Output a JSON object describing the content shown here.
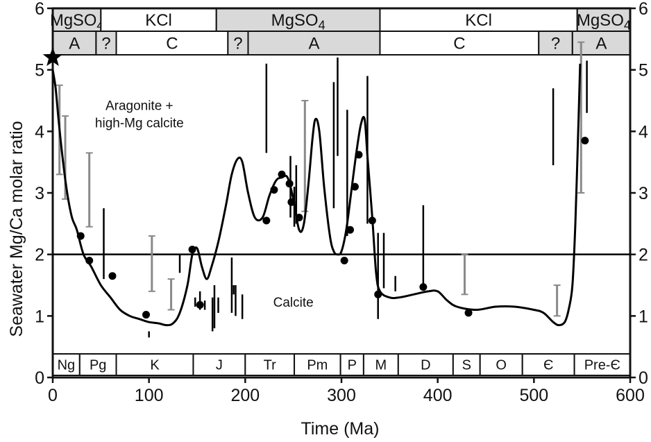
{
  "chart_data": {
    "type": "line",
    "title": "",
    "xlabel": "Time (Ma)",
    "ylabel": "Seawater Mg/Ca molar ratio",
    "xlim": [
      0,
      600
    ],
    "ylim": [
      0,
      6
    ],
    "x_ticks": [
      "0",
      "100",
      "200",
      "300",
      "400",
      "500",
      "600"
    ],
    "y_ticks": [
      "0",
      "1",
      "2",
      "3",
      "4",
      "5",
      "6"
    ],
    "grid": false,
    "threshold": {
      "y": 2,
      "label_above": "Aragonite + high-Mg calcite",
      "label_below": "Calcite"
    },
    "sea_type_bands": [
      {
        "label": "MgSO4",
        "from": 0,
        "to": 50,
        "shaded": true
      },
      {
        "label": "KCl",
        "from": 50,
        "to": 170,
        "shaded": false
      },
      {
        "label": "MgSO4",
        "from": 170,
        "to": 340,
        "shaded": true
      },
      {
        "label": "KCl",
        "from": 340,
        "to": 545,
        "shaded": false
      },
      {
        "label": "MgSO4",
        "from": 545,
        "to": 600,
        "shaded": true
      }
    ],
    "mineralogy_bands": [
      {
        "label": "A",
        "from": 0,
        "to": 45,
        "shaded": true
      },
      {
        "label": "?",
        "from": 45,
        "to": 66,
        "shaded": true
      },
      {
        "label": "C",
        "from": 66,
        "to": 182,
        "shaded": false
      },
      {
        "label": "?",
        "from": 182,
        "to": 203,
        "shaded": true
      },
      {
        "label": "A",
        "from": 203,
        "to": 340,
        "shaded": true
      },
      {
        "label": "C",
        "from": 340,
        "to": 505,
        "shaded": false
      },
      {
        "label": "?",
        "from": 505,
        "to": 540,
        "shaded": true
      },
      {
        "label": "A",
        "from": 540,
        "to": 600,
        "shaded": true
      }
    ],
    "periods": [
      {
        "label": "Ng",
        "from": 0,
        "to": 28
      },
      {
        "label": "Pg",
        "from": 28,
        "to": 66
      },
      {
        "label": "K",
        "from": 66,
        "to": 146
      },
      {
        "label": "J",
        "from": 146,
        "to": 200
      },
      {
        "label": "Tr",
        "from": 200,
        "to": 251
      },
      {
        "label": "Pm",
        "from": 251,
        "to": 299
      },
      {
        "label": "P",
        "from": 299,
        "to": 323
      },
      {
        "label": "M",
        "from": 323,
        "to": 359
      },
      {
        "label": "D",
        "from": 359,
        "to": 416
      },
      {
        "label": "S",
        "from": 416,
        "to": 444
      },
      {
        "label": "O",
        "from": 444,
        "to": 488
      },
      {
        "label": "Є",
        "from": 488,
        "to": 542
      },
      {
        "label": "Pre-Є",
        "from": 542,
        "to": 600
      }
    ],
    "series": [
      {
        "type": "line",
        "x": [
          0,
          3,
          6,
          10,
          15,
          20,
          25,
          32,
          40,
          50,
          60,
          70,
          80,
          90,
          100,
          110,
          118,
          125,
          132,
          140,
          145,
          150,
          155,
          160,
          165,
          172,
          180,
          186,
          192,
          197,
          203,
          210,
          218,
          225,
          232,
          238,
          244,
          250,
          256,
          261,
          266,
          270,
          273,
          277,
          282,
          288,
          292,
          296,
          300,
          305,
          310,
          315,
          320,
          324,
          327,
          332,
          336,
          340,
          350,
          360,
          375,
          390,
          400,
          410,
          420,
          440,
          460,
          480,
          500,
          510,
          520,
          526,
          532,
          536,
          540,
          543,
          546,
          548
        ],
        "y": [
          5.0,
          4.7,
          4.2,
          3.6,
          3.0,
          2.6,
          2.4,
          2.0,
          1.8,
          1.5,
          1.3,
          1.1,
          1.0,
          0.95,
          0.9,
          0.88,
          0.85,
          0.88,
          1.05,
          1.5,
          2.0,
          2.1,
          1.8,
          1.6,
          1.8,
          2.2,
          2.8,
          3.3,
          3.55,
          3.5,
          3.0,
          2.6,
          2.6,
          2.95,
          3.2,
          3.25,
          3.25,
          2.9,
          2.4,
          2.5,
          3.2,
          3.9,
          4.2,
          4.0,
          3.1,
          2.3,
          2.05,
          2.0,
          2.05,
          2.4,
          3.0,
          3.6,
          4.1,
          4.2,
          3.6,
          2.6,
          1.7,
          1.4,
          1.3,
          1.3,
          1.35,
          1.4,
          1.4,
          1.25,
          1.15,
          1.1,
          1.15,
          1.15,
          1.1,
          1.05,
          0.9,
          0.85,
          0.9,
          1.1,
          1.5,
          2.5,
          4.0,
          5.1
        ]
      },
      {
        "type": "scatter",
        "points": [
          [
            29,
            2.3
          ],
          [
            38,
            1.9
          ],
          [
            62,
            1.65
          ],
          [
            97,
            1.02
          ],
          [
            145,
            2.08
          ],
          [
            153,
            1.18
          ],
          [
            222,
            2.55
          ],
          [
            230,
            3.05
          ],
          [
            238,
            3.3
          ],
          [
            246,
            3.15
          ],
          [
            248,
            2.85
          ],
          [
            256,
            2.6
          ],
          [
            303,
            1.9
          ],
          [
            309,
            2.4
          ],
          [
            314,
            3.1
          ],
          [
            318,
            3.62
          ],
          [
            332,
            2.55
          ],
          [
            338,
            1.35
          ],
          [
            385,
            1.47
          ],
          [
            432,
            1.05
          ],
          [
            553,
            3.85
          ]
        ]
      },
      {
        "type": "range-bars-black",
        "ranges": [
          [
            53,
            1.6,
            2.75
          ],
          [
            100,
            0.65,
            0.75
          ],
          [
            132,
            1.7,
            2.0
          ],
          [
            148,
            1.15,
            1.3
          ],
          [
            153,
            1.1,
            1.4
          ],
          [
            158,
            1.1,
            1.25
          ],
          [
            166,
            0.75,
            1.3
          ],
          [
            168,
            0.8,
            1.5
          ],
          [
            172,
            1.05,
            1.3
          ],
          [
            186,
            1.05,
            1.95
          ],
          [
            188,
            1.35,
            1.5
          ],
          [
            190,
            1.0,
            1.5
          ],
          [
            197,
            0.95,
            1.35
          ],
          [
            222,
            3.65,
            5.1
          ],
          [
            247,
            2.6,
            3.6
          ],
          [
            251,
            2.45,
            3.1
          ],
          [
            253,
            2.5,
            3.45
          ],
          [
            292,
            2.75,
            4.8
          ],
          [
            296,
            3.6,
            5.2
          ],
          [
            306,
            2.3,
            4.35
          ],
          [
            327,
            2.5,
            4.9
          ],
          [
            338,
            0.95,
            2.35
          ],
          [
            344,
            1.45,
            2.35
          ],
          [
            356,
            1.4,
            1.65
          ],
          [
            385,
            1.48,
            2.8
          ],
          [
            520,
            3.45,
            4.7
          ],
          [
            555,
            4.3,
            5.15
          ]
        ]
      },
      {
        "type": "error-bars-gray",
        "ranges": [
          [
            7,
            3.3,
            4.75
          ],
          [
            13,
            2.9,
            4.25
          ],
          [
            38,
            2.45,
            3.65
          ],
          [
            103,
            1.4,
            2.3
          ],
          [
            123,
            1.1,
            1.6
          ],
          [
            262,
            2.7,
            4.5
          ],
          [
            428,
            1.35,
            2.0
          ],
          [
            524,
            1.0,
            1.5
          ],
          [
            549,
            3.0,
            5.45
          ]
        ]
      }
    ],
    "star_marker": {
      "x": 0,
      "y": 5.2
    }
  },
  "colors": {
    "axis": "#111111",
    "line": "#000000",
    "points": "#000000",
    "error_bars": "#8a8a8a",
    "shaded_band": "#d9d9d9",
    "band_white": "#ffffff"
  }
}
